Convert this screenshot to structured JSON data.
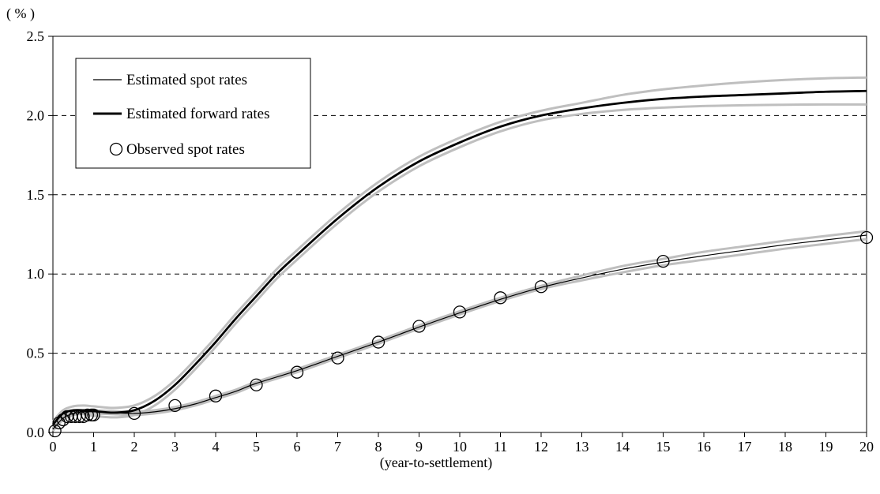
{
  "chart_data": {
    "type": "line",
    "title": "",
    "ylabel": "( % )",
    "xlabel": "(year-to-settlement)",
    "xlim": [
      0,
      20
    ],
    "ylim": [
      0,
      2.5
    ],
    "x_ticks": [
      0,
      1,
      2,
      3,
      4,
      5,
      6,
      7,
      8,
      9,
      10,
      11,
      12,
      13,
      14,
      15,
      16,
      17,
      18,
      19,
      20
    ],
    "y_ticks": [
      0.0,
      0.5,
      1.0,
      1.5,
      2.0,
      2.5
    ],
    "x_tick_labels": [
      "0",
      "1",
      "2",
      "3",
      "4",
      "5",
      "6",
      "7",
      "8",
      "9",
      "10",
      "11",
      "12",
      "13",
      "14",
      "15",
      "16",
      "17",
      "18",
      "19",
      "20"
    ],
    "y_tick_labels": [
      "0.0",
      "0.5",
      "1.0",
      "1.5",
      "2.0",
      "2.5"
    ],
    "grid": "horizontal dashed",
    "legend_placement": "top-left",
    "series": [
      {
        "name": "Estimated spot rates",
        "kind": "line",
        "stroke": "thin",
        "x": [
          0,
          0.25,
          0.5,
          0.75,
          1,
          1.5,
          2,
          2.5,
          3,
          3.5,
          4,
          4.5,
          5,
          6,
          7,
          8,
          9,
          10,
          11,
          12,
          13,
          14,
          15,
          16,
          17,
          18,
          19,
          20
        ],
        "y": [
          0.02,
          0.09,
          0.12,
          0.13,
          0.13,
          0.125,
          0.12,
          0.13,
          0.15,
          0.18,
          0.22,
          0.26,
          0.31,
          0.39,
          0.48,
          0.57,
          0.665,
          0.755,
          0.84,
          0.915,
          0.975,
          1.03,
          1.075,
          1.115,
          1.15,
          1.185,
          1.215,
          1.245
        ],
        "band_upper": [
          0.03,
          0.1,
          0.13,
          0.14,
          0.14,
          0.135,
          0.13,
          0.14,
          0.16,
          0.19,
          0.23,
          0.27,
          0.32,
          0.4,
          0.49,
          0.58,
          0.675,
          0.765,
          0.85,
          0.925,
          0.99,
          1.05,
          1.095,
          1.14,
          1.175,
          1.21,
          1.24,
          1.27
        ],
        "band_lower": [
          0.01,
          0.08,
          0.11,
          0.12,
          0.12,
          0.115,
          0.11,
          0.12,
          0.14,
          0.17,
          0.21,
          0.25,
          0.3,
          0.38,
          0.47,
          0.56,
          0.655,
          0.745,
          0.83,
          0.905,
          0.96,
          1.01,
          1.055,
          1.09,
          1.125,
          1.16,
          1.19,
          1.22
        ]
      },
      {
        "name": "Estimated forward rates",
        "kind": "line",
        "stroke": "thick",
        "x": [
          0,
          0.25,
          0.5,
          0.75,
          1,
          1.5,
          2,
          2.5,
          3,
          3.5,
          4,
          4.5,
          5,
          5.5,
          6,
          7,
          8,
          9,
          10,
          11,
          12,
          13,
          14,
          15,
          16,
          17,
          18,
          19,
          20
        ],
        "y": [
          0.05,
          0.12,
          0.14,
          0.14,
          0.135,
          0.125,
          0.14,
          0.2,
          0.3,
          0.43,
          0.57,
          0.72,
          0.86,
          1.0,
          1.12,
          1.35,
          1.55,
          1.71,
          1.83,
          1.93,
          2.0,
          2.045,
          2.08,
          2.105,
          2.12,
          2.13,
          2.14,
          2.15,
          2.155
        ],
        "band_upper": [
          0.07,
          0.14,
          0.165,
          0.17,
          0.165,
          0.155,
          0.17,
          0.23,
          0.33,
          0.46,
          0.6,
          0.75,
          0.89,
          1.03,
          1.15,
          1.38,
          1.58,
          1.74,
          1.86,
          1.96,
          2.03,
          2.08,
          2.13,
          2.165,
          2.19,
          2.21,
          2.225,
          2.235,
          2.24
        ],
        "band_lower": [
          0.03,
          0.1,
          0.115,
          0.115,
          0.105,
          0.095,
          0.11,
          0.17,
          0.27,
          0.4,
          0.54,
          0.69,
          0.83,
          0.97,
          1.09,
          1.32,
          1.52,
          1.68,
          1.8,
          1.9,
          1.97,
          2.01,
          2.035,
          2.05,
          2.06,
          2.065,
          2.068,
          2.07,
          2.07
        ]
      },
      {
        "name": "Observed spot rates",
        "kind": "scatter",
        "x": [
          0.05,
          0.15,
          0.25,
          0.35,
          0.45,
          0.55,
          0.65,
          0.75,
          0.85,
          0.95,
          1,
          2,
          3,
          4,
          5,
          6,
          7,
          8,
          9,
          10,
          11,
          12,
          15,
          20
        ],
        "y": [
          0.01,
          0.06,
          0.08,
          0.1,
          0.1,
          0.1,
          0.1,
          0.1,
          0.11,
          0.11,
          0.11,
          0.12,
          0.17,
          0.23,
          0.3,
          0.38,
          0.47,
          0.57,
          0.67,
          0.76,
          0.85,
          0.92,
          1.08,
          1.23
        ]
      }
    ],
    "colors": {
      "line": "#000000",
      "band": "#bfbfbf",
      "grid": "#000000"
    }
  }
}
